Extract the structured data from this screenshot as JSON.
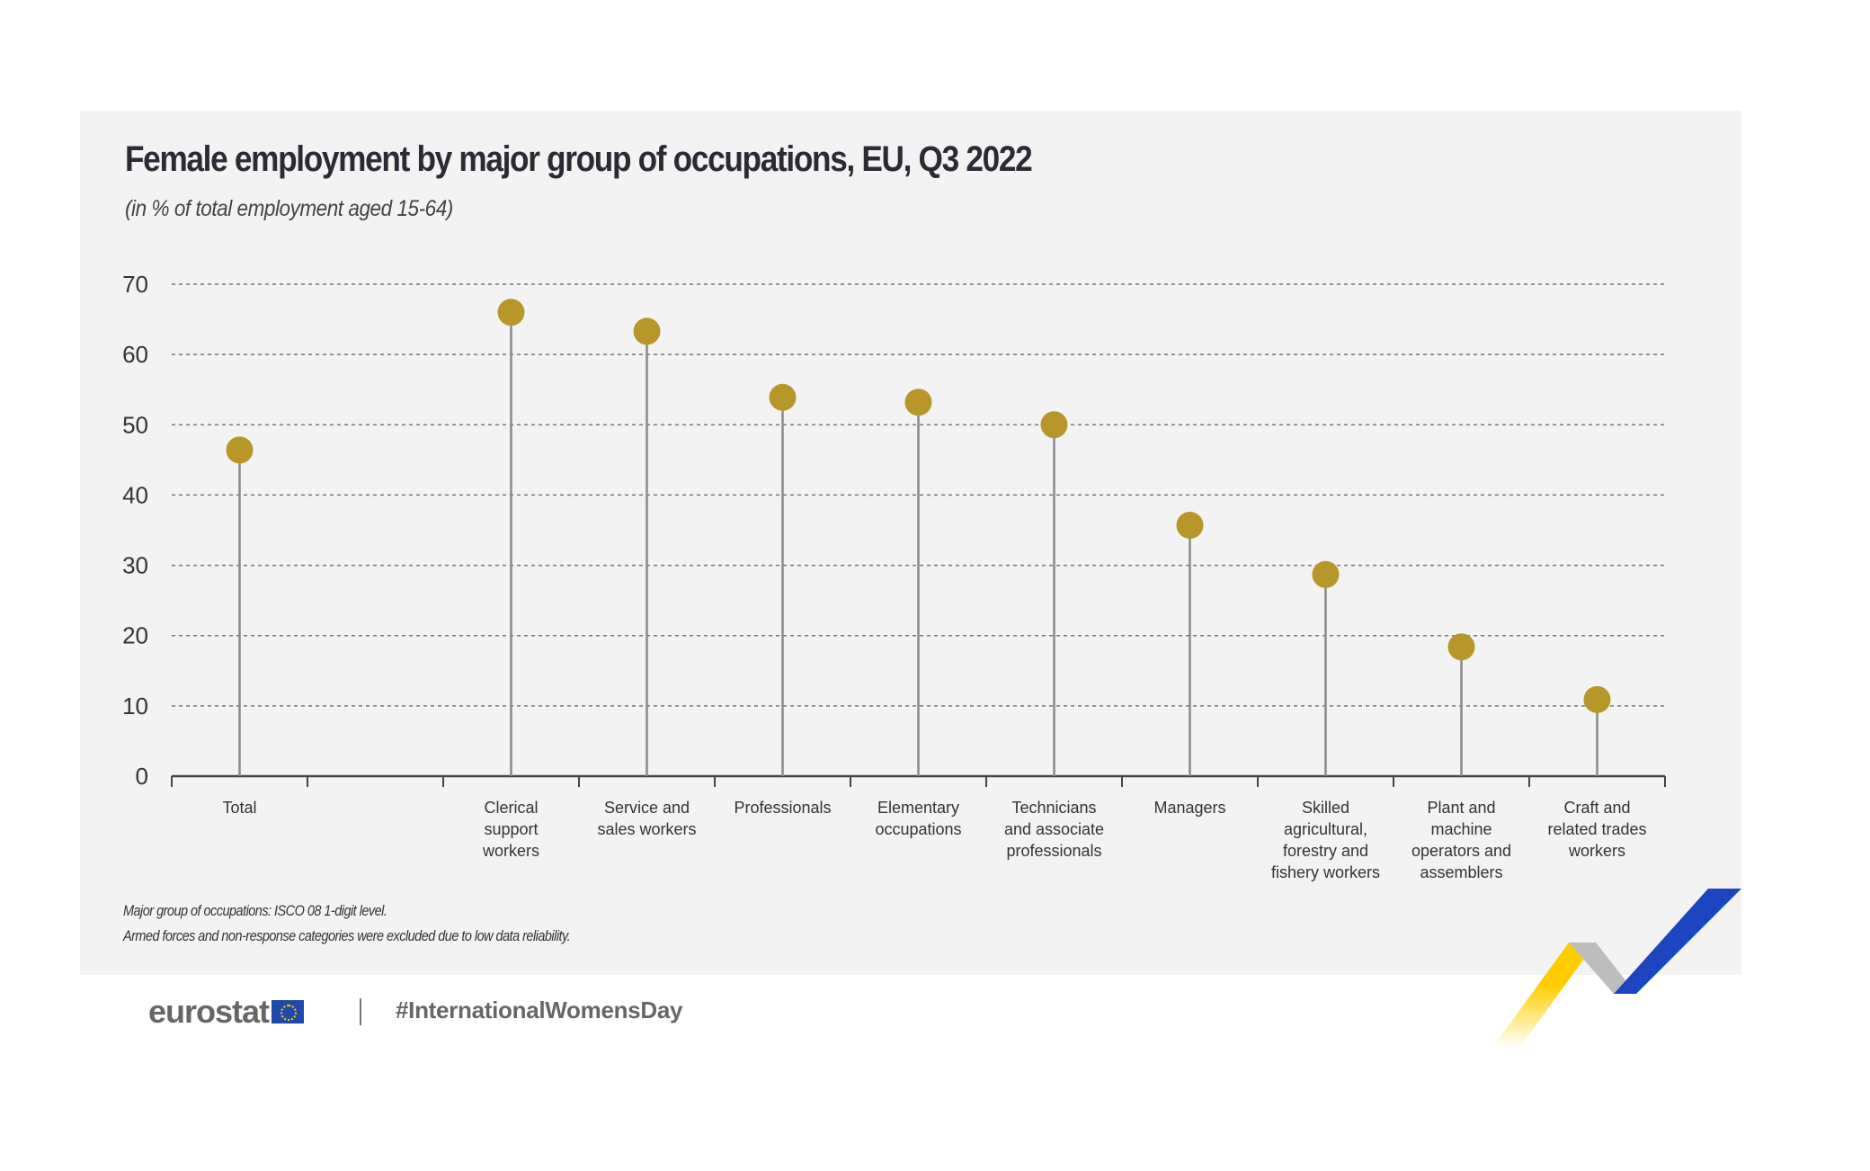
{
  "chart_data": {
    "type": "lollipop",
    "title": "Female employment by major group of occupations, EU, Q3 2022",
    "subtitle": "(in % of total employment aged 15-64)",
    "categories": [
      [
        "Total"
      ],
      [
        ""
      ],
      [
        "Clerical",
        "support",
        "workers"
      ],
      [
        "Service and",
        "sales workers"
      ],
      [
        "Professionals"
      ],
      [
        "Elementary",
        "occupations"
      ],
      [
        "Technicians",
        "and associate",
        "professionals"
      ],
      [
        "Managers"
      ],
      [
        "Skilled",
        "agricultural,",
        "forestry and",
        "fishery workers"
      ],
      [
        "Plant and",
        "machine",
        "operators and",
        "assemblers"
      ],
      [
        "Craft and",
        "related trades",
        "workers"
      ]
    ],
    "values": [
      46.4,
      null,
      66.0,
      63.3,
      53.9,
      53.2,
      50.0,
      35.7,
      28.7,
      18.4,
      10.9
    ],
    "ylim": [
      0,
      70
    ],
    "yticks": [
      0,
      10,
      20,
      30,
      40,
      50,
      60,
      70
    ],
    "grid": true,
    "marker_color": "#b8972a",
    "stem_color": "#8a8a8a"
  },
  "notes": [
    "Major group of occupations: ISCO 08 1-digit level.",
    "Armed forces and non-response categories were excluded due to low data reliability."
  ],
  "footer": {
    "logo_text": "eurostat",
    "hashtag": "#InternationalWomensDay"
  }
}
